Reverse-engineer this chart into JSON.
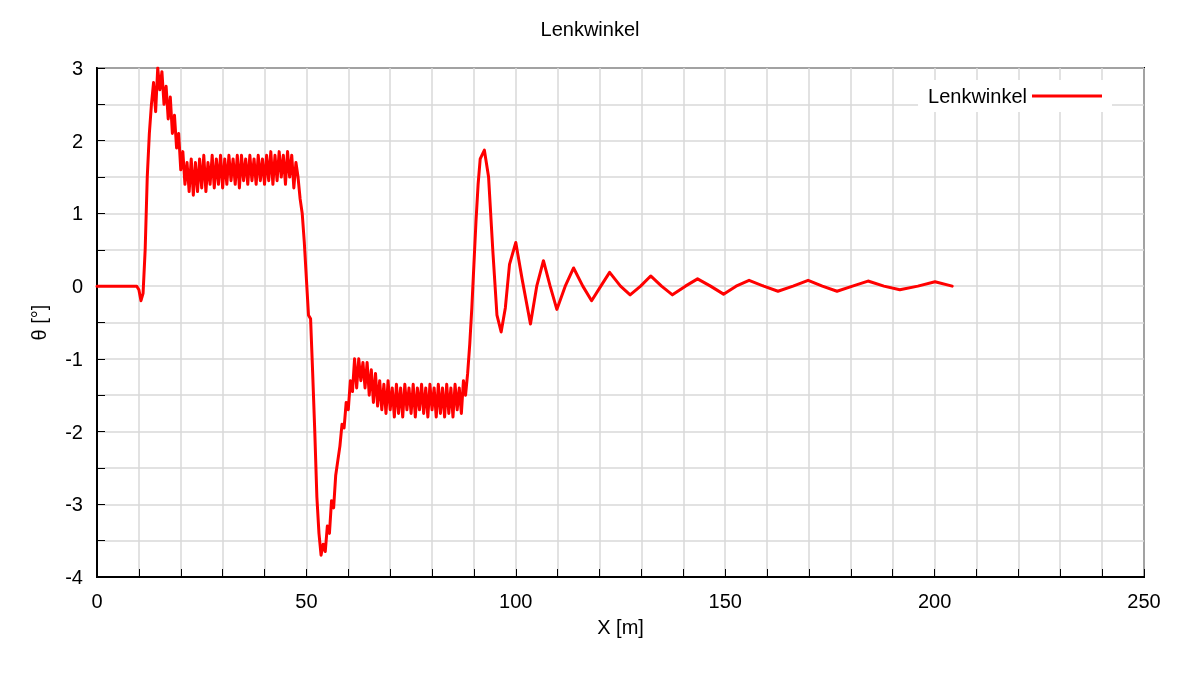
{
  "chart_data": {
    "type": "line",
    "title": "Lenkwinkel",
    "xlabel": "X [m]",
    "ylabel": "θ [°]",
    "xlim": [
      0,
      250
    ],
    "xticks": [
      0,
      {
        "value": 10,
        "label": null
      },
      {
        "value": 20,
        "label": null
      },
      {
        "value": 30,
        "label": null
      },
      {
        "value": 40,
        "label": null
      },
      50,
      {
        "value": 60,
        "label": null
      },
      {
        "value": 70,
        "label": null
      },
      {
        "value": 80,
        "label": null
      },
      {
        "value": 90,
        "label": null
      },
      100,
      {
        "value": 110,
        "label": null
      },
      {
        "value": 120,
        "label": null
      },
      {
        "value": 130,
        "label": null
      },
      {
        "value": 140,
        "label": null
      },
      150,
      {
        "value": 160,
        "label": null
      },
      {
        "value": 170,
        "label": null
      },
      {
        "value": 180,
        "label": null
      },
      {
        "value": 190,
        "label": null
      },
      200,
      {
        "value": 210,
        "label": null
      },
      {
        "value": 220,
        "label": null
      },
      {
        "value": 230,
        "label": null
      },
      {
        "value": 240,
        "label": null
      },
      250
    ],
    "ylim": [
      -4,
      3
    ],
    "yticks": [
      -4,
      {
        "value": -3.5,
        "label": null
      },
      -3,
      {
        "value": -2.5,
        "label": null
      },
      -2,
      {
        "value": -1.5,
        "label": null
      },
      -1,
      {
        "value": -0.5,
        "label": null
      },
      0,
      {
        "value": 0.5,
        "label": null
      },
      1,
      {
        "value": 1.5,
        "label": null
      },
      2,
      {
        "value": 2.5,
        "label": null
      },
      3
    ],
    "grid": true,
    "legend": "top right",
    "marker": "none",
    "line_style": "solid",
    "series": [
      {
        "name": "Lenkwinkel",
        "color": "#ff0000",
        "x": [
          0,
          9.5,
          10,
          10.5,
          11,
          11.5,
          12,
          12.5,
          13,
          13.5,
          14,
          14.5,
          15,
          15.5,
          16,
          16.5,
          17,
          17.5,
          18,
          18.5,
          19,
          19.5,
          20,
          20.5,
          21,
          21.5,
          22,
          22.5,
          23,
          23.5,
          24,
          24.5,
          25,
          25.5,
          26,
          26.5,
          27,
          27.5,
          28,
          28.5,
          29,
          29.5,
          30,
          30.5,
          31,
          31.5,
          32,
          32.5,
          33,
          33.5,
          34,
          34.5,
          35,
          35.5,
          36,
          36.5,
          37,
          37.5,
          38,
          38.5,
          39,
          39.5,
          40,
          40.5,
          41,
          41.5,
          42,
          42.5,
          43,
          43.5,
          44,
          44.5,
          45,
          45.5,
          46,
          46.5,
          47,
          47.5,
          48,
          48.5,
          49,
          49.5,
          50,
          50.5,
          51,
          51.5,
          52,
          52.5,
          53,
          53.5,
          54,
          54.5,
          55,
          55.5,
          56,
          56.5,
          57,
          57.5,
          58,
          58.5,
          59,
          59.5,
          60,
          60.5,
          61,
          61.5,
          62,
          62.5,
          63,
          63.5,
          64,
          64.5,
          65,
          65.5,
          66,
          66.5,
          67,
          67.5,
          68,
          68.5,
          69,
          69.5,
          70,
          70.5,
          71,
          71.5,
          72,
          72.5,
          73,
          73.5,
          74,
          74.5,
          75,
          75.5,
          76,
          76.5,
          77,
          77.5,
          78,
          78.5,
          79,
          79.5,
          80,
          80.5,
          81,
          81.5,
          82,
          82.5,
          83,
          83.5,
          84,
          84.5,
          85,
          85.5,
          86,
          86.5,
          87,
          87.5,
          88,
          88.5,
          89,
          89.5,
          90,
          90.5,
          91,
          91.5,
          92.5,
          93.5,
          94.5,
          95.5,
          96.5,
          97.5,
          98.5,
          100,
          101.5,
          103.5,
          105,
          106.6,
          108.2,
          109.8,
          111.8,
          113.8,
          116,
          118.1,
          120.3,
          122.4,
          125,
          127.3,
          129.8,
          132.2,
          134.8,
          137.4,
          140.5,
          143.4,
          146.5,
          149.6,
          152.6,
          155.7,
          159.2,
          162.6,
          166.2,
          169.8,
          173.2,
          176.7,
          180.4,
          184.1,
          187.9,
          191.7,
          196,
          200.1,
          204.2
        ],
        "values": [
          0,
          0,
          -0.05,
          -0.2,
          -0.1,
          0.5,
          1.5,
          2.1,
          2.5,
          2.8,
          2.4,
          3.0,
          2.7,
          2.95,
          2.5,
          2.75,
          2.3,
          2.6,
          2.1,
          2.35,
          1.9,
          2.1,
          1.6,
          1.85,
          1.4,
          1.7,
          1.3,
          1.75,
          1.25,
          1.7,
          1.3,
          1.75,
          1.35,
          1.8,
          1.3,
          1.7,
          1.4,
          1.8,
          1.35,
          1.75,
          1.4,
          1.8,
          1.35,
          1.75,
          1.4,
          1.8,
          1.45,
          1.75,
          1.4,
          1.8,
          1.35,
          1.8,
          1.45,
          1.75,
          1.4,
          1.8,
          1.45,
          1.75,
          1.4,
          1.8,
          1.45,
          1.75,
          1.4,
          1.8,
          1.45,
          1.85,
          1.4,
          1.8,
          1.45,
          1.85,
          1.5,
          1.8,
          1.4,
          1.85,
          1.5,
          1.8,
          1.35,
          1.7,
          1.5,
          1.2,
          1.0,
          0.6,
          0.1,
          -0.4,
          -0.45,
          -1.2,
          -2.0,
          -2.9,
          -3.4,
          -3.7,
          -3.55,
          -3.65,
          -3.3,
          -3.4,
          -2.95,
          -3.05,
          -2.6,
          -2.4,
          -2.2,
          -1.9,
          -1.95,
          -1.6,
          -1.7,
          -1.3,
          -1.45,
          -1.0,
          -1.4,
          -1.0,
          -1.3,
          -1.05,
          -1.4,
          -1.05,
          -1.5,
          -1.15,
          -1.6,
          -1.2,
          -1.65,
          -1.3,
          -1.7,
          -1.35,
          -1.75,
          -1.3,
          -1.7,
          -1.4,
          -1.8,
          -1.35,
          -1.75,
          -1.4,
          -1.8,
          -1.35,
          -1.7,
          -1.4,
          -1.75,
          -1.35,
          -1.8,
          -1.4,
          -1.7,
          -1.35,
          -1.75,
          -1.4,
          -1.8,
          -1.35,
          -1.7,
          -1.4,
          -1.8,
          -1.35,
          -1.75,
          -1.4,
          -1.8,
          -1.35,
          -1.75,
          -1.4,
          -1.8,
          -1.35,
          -1.7,
          -1.4,
          -1.75,
          -1.3,
          -1.5,
          -1.2,
          -0.8,
          -0.3,
          0.3,
          0.9,
          1.4,
          1.75,
          1.87,
          1.5,
          0.5,
          -0.4,
          -0.63,
          -0.3,
          0.3,
          0.6,
          0.1,
          -0.52,
          0,
          0.35,
          0,
          -0.32,
          0,
          0.25,
          0,
          -0.2,
          0,
          0.19,
          0,
          -0.12,
          0,
          0.14,
          0,
          -0.12,
          0,
          0.1,
          0,
          -0.11,
          0,
          0.08,
          0,
          -0.07,
          0,
          0.08,
          0,
          -0.07,
          0,
          0.07,
          0,
          -0.05,
          0,
          0.06,
          0
        ]
      }
    ]
  }
}
